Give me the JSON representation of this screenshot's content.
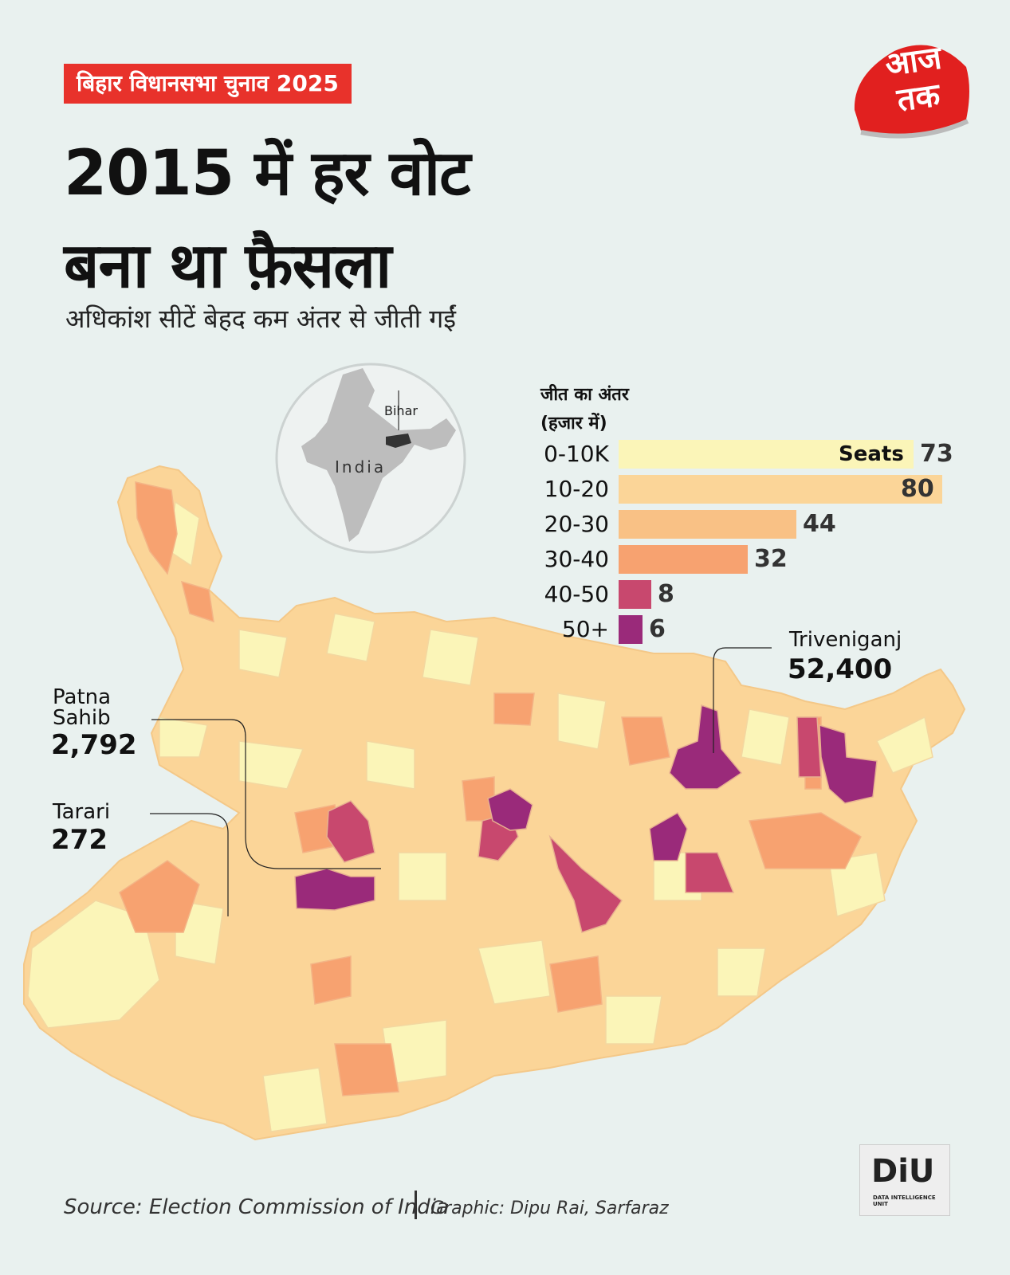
{
  "header": {
    "tag": "बिहार विधानसभा चुनाव 2025",
    "title_line1": "2015 में हर वोट",
    "title_line2": "बना था फ़ैसला",
    "subtitle": "अधिकांश सीटें बेहद कम अंतर से जीती गईं"
  },
  "logo": {
    "line1": "आज",
    "line2": "तक"
  },
  "inset": {
    "state_label": "Bihar",
    "country_label": "India"
  },
  "legend": {
    "heading_line1": "जीत का अंतर",
    "heading_line2": "(हजार में)",
    "seats_label": "Seats",
    "rows": [
      {
        "range": "0-10K",
        "seats": 73,
        "color": "#fbf5b8"
      },
      {
        "range": "10-20",
        "seats": 80,
        "color": "#fbd598"
      },
      {
        "range": "20-30",
        "seats": 44,
        "color": "#f9c185"
      },
      {
        "range": "30-40",
        "seats": 32,
        "color": "#f7a270"
      },
      {
        "range": "40-50",
        "seats": 8,
        "color": "#c8486e"
      },
      {
        "range": "50+",
        "seats": 6,
        "color": "#9a2a7a"
      }
    ]
  },
  "annotations": {
    "triveniganj": {
      "name": "Triveniganj",
      "value": "52,400"
    },
    "patna_sahib": {
      "name_line1": "Patna",
      "name_line2": "Sahib",
      "value": "2,792"
    },
    "tarari": {
      "name": "Tarari",
      "value": "272"
    }
  },
  "footer": {
    "source": "Source: Election Commission of India",
    "graphic": "Graphic: Dipu Rai, Sarfaraz",
    "diu": "DiU",
    "diu_sub": "DATA INTELLIGENCE UNIT"
  }
}
